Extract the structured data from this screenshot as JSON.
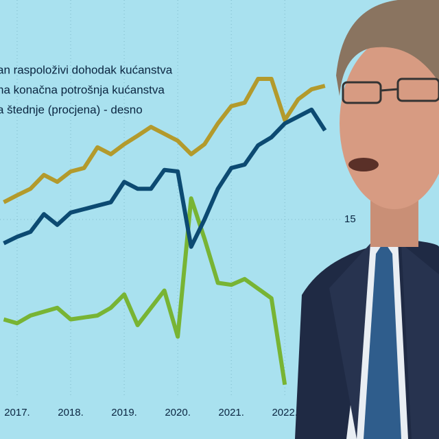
{
  "chart_data": {
    "type": "line",
    "x": [
      2016.75,
      2017,
      2017.25,
      2017.5,
      2017.75,
      2018,
      2018.25,
      2018.5,
      2018.75,
      2019,
      2019.25,
      2019.5,
      2019.75,
      2020,
      2020.25,
      2020.5,
      2020.75,
      2021,
      2021.25,
      2021.5,
      2021.75,
      2022,
      2022.25,
      2022.5,
      2022.75
    ],
    "xlim": [
      2016.68,
      2024.88
    ],
    "xticks": [
      {
        "value": 2017,
        "label": "2017."
      },
      {
        "value": 2018,
        "label": "2018."
      },
      {
        "value": 2019,
        "label": "2019."
      },
      {
        "value": 2020,
        "label": "2020."
      },
      {
        "value": 2021,
        "label": "2021."
      },
      {
        "value": 2022,
        "label": "2022."
      }
    ],
    "ylim": [
      0,
      100
    ],
    "y2lim": [
      5,
      25
    ],
    "y2ticks": [
      15
    ],
    "grid": true,
    "series": [
      {
        "name": "an raspoloživi dohodak kućanstva",
        "color": "#0c4a72",
        "values": [
          43.8,
          45.5,
          46.8,
          51.4,
          48.6,
          51.8,
          52.7,
          53.6,
          54.5,
          59.8,
          58.0,
          58.0,
          62.9,
          62.5,
          42.9,
          50.0,
          58.0,
          63.4,
          64.3,
          69.3,
          71.4,
          75.0,
          76.8,
          78.6,
          73.2
        ]
      },
      {
        "name": "na konačna potrošnja kućanstva",
        "color": "#b39a2c",
        "values": [
          54.5,
          56.3,
          58.0,
          61.6,
          59.8,
          62.5,
          63.4,
          68.8,
          67.0,
          69.6,
          71.8,
          74.1,
          72.3,
          70.5,
          67.0,
          69.6,
          75.0,
          79.5,
          80.4,
          86.6,
          86.6,
          75.9,
          81.3,
          83.9,
          84.8
        ]
      },
      {
        "name": "a štednje (procjena) - desno",
        "color": "#78b434",
        "axis": "y2",
        "values": [
          9.8,
          9.6,
          10.0,
          10.2,
          10.4,
          9.8,
          9.9,
          10.0,
          10.4,
          11.1,
          9.5,
          10.4,
          11.3,
          8.9,
          16.1,
          14.0,
          11.7,
          11.6,
          11.9,
          11.4,
          10.9,
          6.4,
          null,
          null,
          null
        ]
      }
    ]
  }
}
